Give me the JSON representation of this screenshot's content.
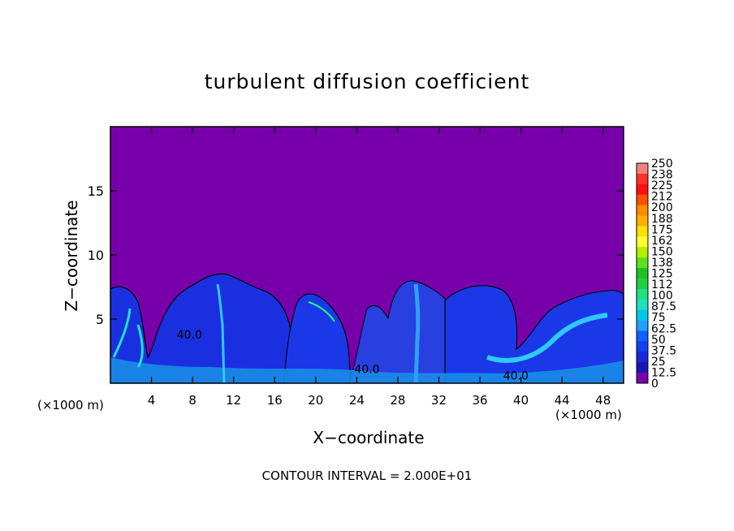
{
  "chart_data": {
    "type": "heatmap",
    "title": "turbulent diffusion coefficient",
    "xlabel": "X−coordinate",
    "ylabel": "Z−coordinate",
    "x_unit_left": "(×1000 m)",
    "x_unit_right": "(×1000 m)",
    "xlim": [
      0,
      50
    ],
    "ylim": [
      0,
      20
    ],
    "x_ticks": [
      4,
      8,
      12,
      16,
      20,
      24,
      28,
      32,
      36,
      40,
      44,
      48
    ],
    "y_ticks": [
      5,
      10,
      15
    ],
    "contour_labels": [
      {
        "text": "40.0",
        "x": 7.7,
        "z": 3.8
      },
      {
        "text": "40.0",
        "x": 25.0,
        "z": 1.1
      },
      {
        "text": "40.0",
        "x": 39.5,
        "z": 0.6
      }
    ],
    "colorbar": {
      "labels": [
        "250",
        "238",
        "225",
        "212",
        "200",
        "188",
        "175",
        "162",
        "150",
        "138",
        "125",
        "112",
        "100",
        "87.5",
        "75",
        "62.5",
        "50",
        "37.5",
        "25",
        "12.5",
        "0"
      ],
      "colors": [
        "#f08080",
        "#ff3030",
        "#ff1010",
        "#ff5000",
        "#ff8c00",
        "#ffb000",
        "#ffe000",
        "#ffff30",
        "#b4f000",
        "#60e020",
        "#20c020",
        "#20d040",
        "#20e080",
        "#20e0c0",
        "#00c8e8",
        "#20a0ff",
        "#1060ff",
        "#1040f0",
        "#1828d8",
        "#1818b0",
        "#7800aa"
      ]
    },
    "background_color": "#7800aa",
    "footer": "CONTOUR INTERVAL = 2.000E+01"
  }
}
